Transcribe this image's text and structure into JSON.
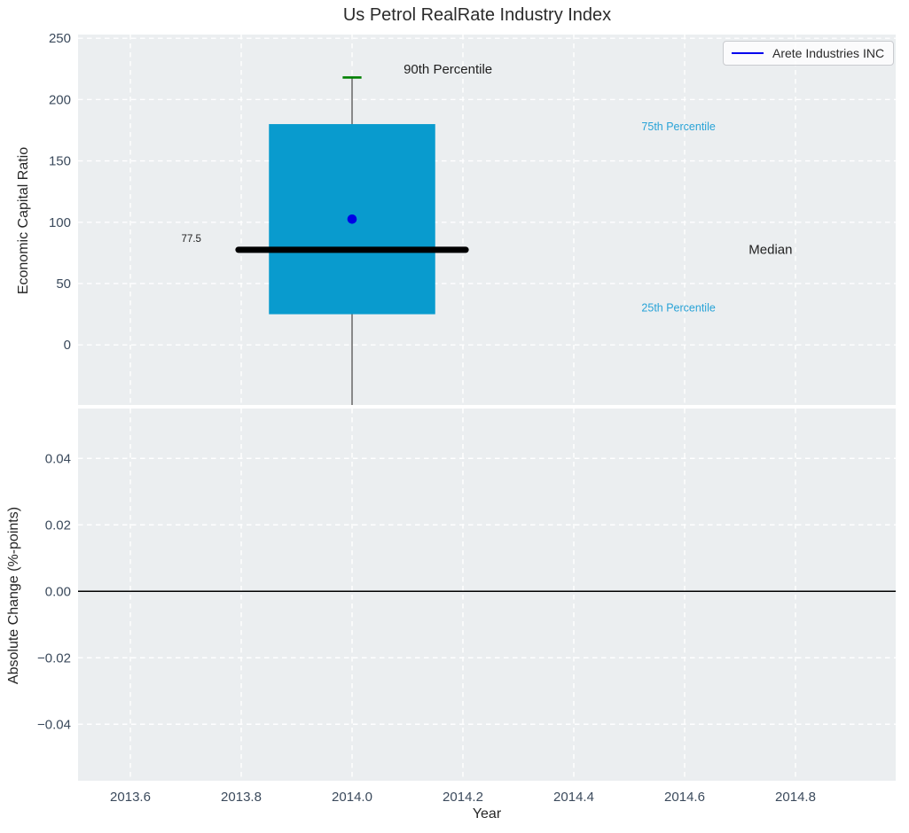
{
  "title": "Us Petrol RealRate Industry Index",
  "legend": {
    "label": "Arete Industries INC",
    "line_color": "#0000ee"
  },
  "styles": {
    "figure_bg": "#ffffff",
    "plot_bg": "#ebeef0",
    "grid_color": "#ffffff",
    "tick_label_color": "#3b4a5c",
    "text_color": "#262626",
    "box_fill": "#099bce",
    "median_color": "#000000",
    "whisker_color": "#7d7d7d",
    "cap_color": "#008000",
    "mean_dot_color": "#0000e6",
    "percentile_label_color": "#29a3d7",
    "zero_line_color": "#000000"
  },
  "chart_data": [
    {
      "type": "box",
      "title": "Us Petrol RealRate Industry Index",
      "ylabel": "Economic Capital Ratio",
      "xlabel": "",
      "xlim": [
        2013.5056,
        2014.9808
      ],
      "ylim": [
        -49,
        253
      ],
      "grid": true,
      "xgrid": [
        2013.6,
        2013.8,
        2014.0,
        2014.2,
        2014.4,
        2014.6,
        2014.8
      ],
      "yticks": [
        {
          "v": 250,
          "label": "250"
        },
        {
          "v": 200,
          "label": "200"
        },
        {
          "v": 150,
          "label": "150"
        },
        {
          "v": 100,
          "label": "100"
        },
        {
          "v": 50,
          "label": "50"
        },
        {
          "v": 0,
          "label": "0"
        }
      ],
      "box": {
        "x": 2014.0,
        "box_width": 0.3,
        "q1": 25,
        "q3": 180,
        "median": 77.5,
        "median_line_width": 0.41,
        "whisker_high": 218,
        "whisker_low": -49,
        "whisker_low_clipped_at_axis": true,
        "cap_width": 0.034,
        "mean": 102.5
      },
      "annotations": [
        {
          "id": "90th-percentile-label",
          "text": "90th Percentile",
          "x": 2014.173,
          "y": 225,
          "color": "#1f1f1f",
          "size": 15
        },
        {
          "id": "median-value-label",
          "text": "77.5",
          "x": 2013.71,
          "y": 87,
          "color": "#1f1f1f",
          "size": 11.5
        },
        {
          "id": "median-label",
          "text": "Median",
          "x": 2014.755,
          "y": 78,
          "color": "#1f1f1f",
          "size": 15
        },
        {
          "id": "75th-percentile-label",
          "text": "75th Percentile",
          "x": 2014.589,
          "y": 178,
          "color": "#29a3d7",
          "size": 12.5
        },
        {
          "id": "25th-percentile-label",
          "text": "25th Percentile",
          "x": 2014.589,
          "y": 30.5,
          "color": "#29a3d7",
          "size": 12.5
        }
      ]
    },
    {
      "type": "line",
      "title": "",
      "ylabel": "Absolute Change (%-points)",
      "xlabel": "Year",
      "xlim": [
        2013.5056,
        2014.9808
      ],
      "ylim": [
        -0.057,
        0.055
      ],
      "grid": true,
      "xgrid": [
        2013.6,
        2013.8,
        2014.0,
        2014.2,
        2014.4,
        2014.6,
        2014.8
      ],
      "xticks": [
        {
          "v": 2013.6,
          "label": "2013.6"
        },
        {
          "v": 2013.8,
          "label": "2013.8"
        },
        {
          "v": 2014.0,
          "label": "2014.0"
        },
        {
          "v": 2014.2,
          "label": "2014.2"
        },
        {
          "v": 2014.4,
          "label": "2014.4"
        },
        {
          "v": 2014.6,
          "label": "2014.6"
        },
        {
          "v": 2014.8,
          "label": "2014.8"
        }
      ],
      "yticks": [
        {
          "v": 0.04,
          "label": "0.04"
        },
        {
          "v": 0.02,
          "label": "0.02"
        },
        {
          "v": 0.0,
          "label": "0.00"
        },
        {
          "v": -0.02,
          "label": "−0.02"
        },
        {
          "v": -0.04,
          "label": "−0.04"
        }
      ],
      "zero_line": 0.0,
      "series": []
    }
  ]
}
